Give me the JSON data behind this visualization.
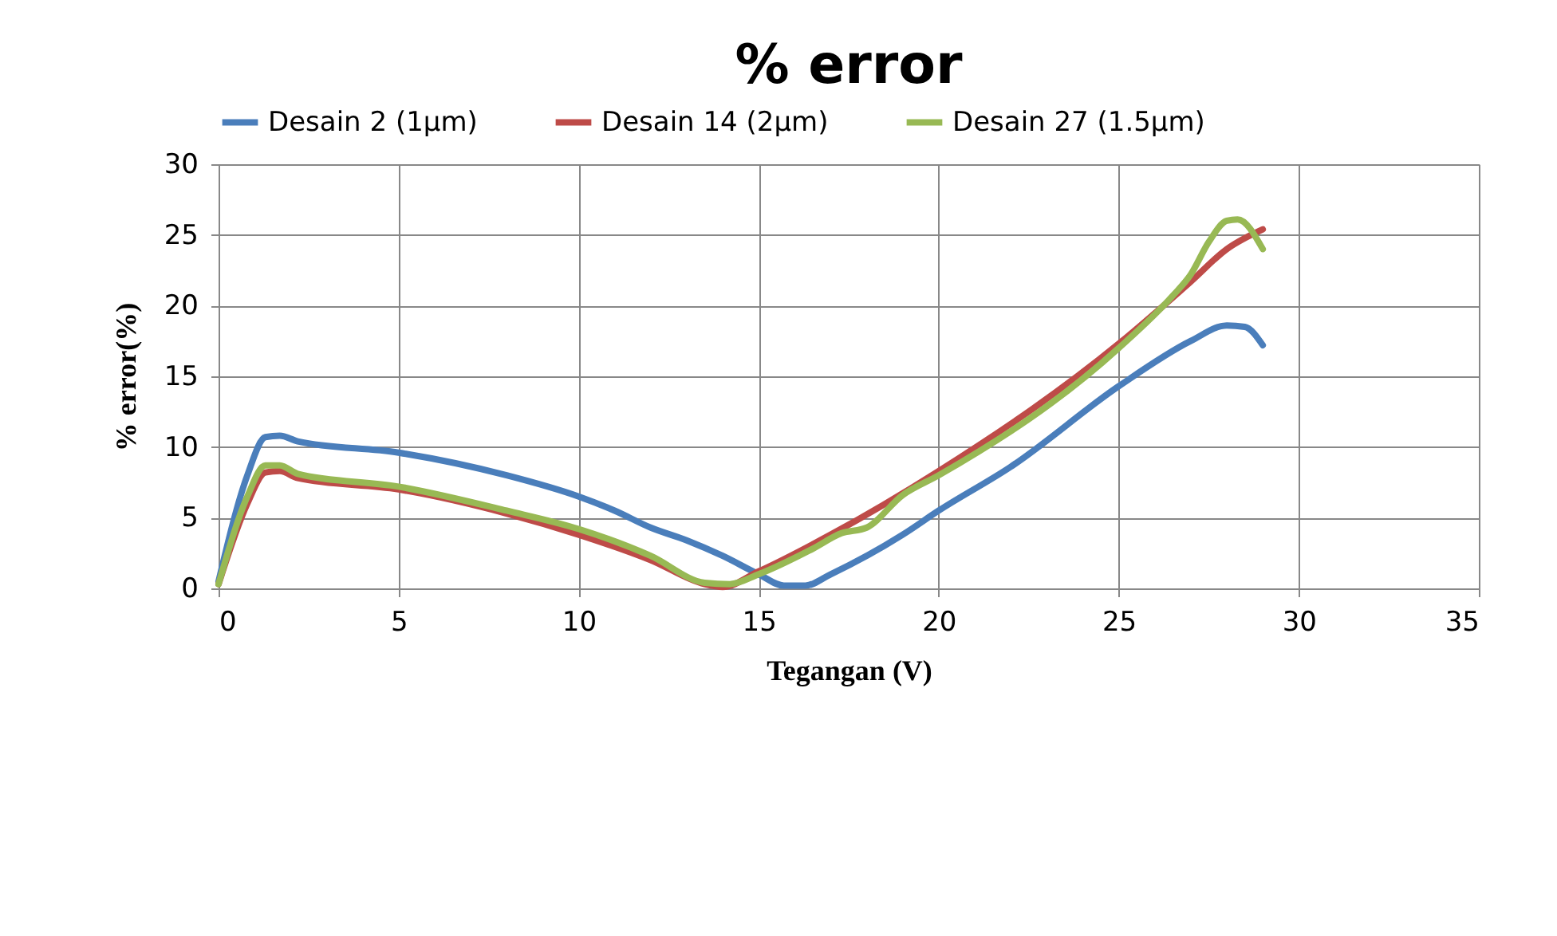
{
  "chart_data": {
    "type": "line",
    "title": "% error",
    "xlabel": "Tegangan (V)",
    "ylabel": "% error(%)",
    "xlim": [
      0,
      35
    ],
    "xticks": [
      0,
      5,
      10,
      15,
      20,
      25,
      30,
      35
    ],
    "ylim": [
      0,
      30
    ],
    "yticks": [
      0,
      5,
      10,
      15,
      20,
      25,
      30
    ],
    "grid": true,
    "legend": "top",
    "marker": "none",
    "line_style": "solid",
    "series": [
      {
        "name": "Desain 2 (1µm)",
        "color": "#4a7ebb",
        "x": [
          0,
          0.8,
          1.3,
          1.7,
          2.2,
          5,
          8,
          10,
          11,
          12,
          13,
          14,
          15,
          15.7,
          16.3,
          17,
          19,
          20,
          22,
          25,
          27,
          28,
          28.5,
          29
        ],
        "values": [
          0.5,
          8,
          10.7,
          10.8,
          10.4,
          9.6,
          8,
          6.5,
          5.5,
          4.3,
          3.4,
          2.3,
          1,
          0.2,
          0.2,
          1,
          3.8,
          5.5,
          8.6,
          14.3,
          17.5,
          18.6,
          18.5,
          17.2
        ]
      },
      {
        "name": "Desain 14 (2µm)",
        "color": "#be4b48",
        "x": [
          0,
          0.8,
          1.3,
          1.7,
          2.2,
          5,
          8,
          10,
          12,
          13.5,
          14,
          15,
          17,
          20,
          25,
          27,
          28,
          29
        ],
        "values": [
          0.3,
          6,
          8.2,
          8.3,
          7.8,
          7,
          5.3,
          3.8,
          2,
          0.3,
          0.1,
          1.2,
          3.8,
          8.3,
          17.3,
          21.7,
          24,
          25.4
        ]
      },
      {
        "name": "Desain 27 (1.5µm)",
        "color": "#98b954",
        "x": [
          0,
          0.8,
          1.3,
          1.7,
          2.2,
          5,
          8,
          10,
          12,
          13.5,
          14.2,
          15,
          16.5,
          17.3,
          18,
          19,
          20,
          25,
          26.5,
          27,
          27.5,
          28,
          28.3,
          29
        ],
        "values": [
          0.3,
          6.5,
          8.7,
          8.7,
          8.1,
          7.2,
          5.5,
          4.2,
          2.3,
          0.4,
          0.3,
          1,
          2.8,
          3.9,
          4.3,
          6.6,
          8,
          17,
          20.7,
          22.2,
          24.5,
          26,
          26.1,
          24
        ]
      }
    ]
  }
}
